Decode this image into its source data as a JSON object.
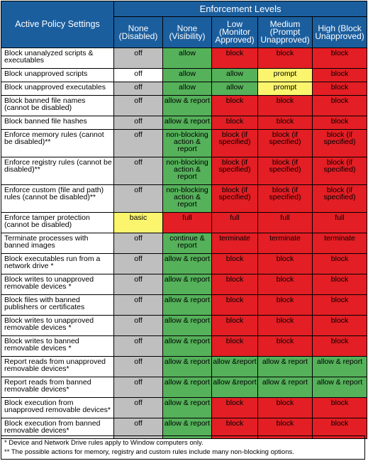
{
  "header": {
    "setting_label": "Active Policy Settings",
    "enforcement_label": "Enforcement Levels",
    "levels": [
      "None (Disabled)",
      "None (Visibility)",
      "Low (Monitor Approved)",
      "Medium (Prompt Unapproved)",
      "High (Block Unapproved)"
    ]
  },
  "colors": {
    "header_bg": "#1b5e9e",
    "gray": "#bfbfbf",
    "green": "#55b15a",
    "red": "#e31e24",
    "yellow": "#fbf56e"
  },
  "rows": [
    {
      "setting": "Block unanalyzed scripts & executables",
      "cells": [
        {
          "t": "off",
          "c": "gray"
        },
        {
          "t": "allow",
          "c": "green"
        },
        {
          "t": "block",
          "c": "red"
        },
        {
          "t": "block",
          "c": "red"
        },
        {
          "t": "block",
          "c": "red"
        }
      ]
    },
    {
      "setting": "Block unapproved scripts",
      "cells": [
        {
          "t": "off",
          "c": "white"
        },
        {
          "t": "allow",
          "c": "green"
        },
        {
          "t": "allow",
          "c": "green"
        },
        {
          "t": "prompt",
          "c": "yellow"
        },
        {
          "t": "block",
          "c": "red"
        }
      ]
    },
    {
      "setting": "Block unapproved executables",
      "cells": [
        {
          "t": "off",
          "c": "gray"
        },
        {
          "t": "allow",
          "c": "green"
        },
        {
          "t": "allow",
          "c": "green"
        },
        {
          "t": "prompt",
          "c": "yellow"
        },
        {
          "t": "block",
          "c": "red"
        }
      ]
    },
    {
      "setting": "Block banned file names (cannot be disabled)",
      "cells": [
        {
          "t": "off",
          "c": "gray"
        },
        {
          "t": "allow & report",
          "c": "green"
        },
        {
          "t": "block",
          "c": "red"
        },
        {
          "t": "block",
          "c": "red"
        },
        {
          "t": "block",
          "c": "red"
        }
      ]
    },
    {
      "setting": "Block banned file hashes",
      "cells": [
        {
          "t": "off",
          "c": "gray"
        },
        {
          "t": "allow & report",
          "c": "green"
        },
        {
          "t": "block",
          "c": "red"
        },
        {
          "t": "block",
          "c": "red"
        },
        {
          "t": "block",
          "c": "red"
        }
      ]
    },
    {
      "setting": "Enforce memory rules (cannot be disabled)**",
      "cells": [
        {
          "t": "off",
          "c": "gray"
        },
        {
          "t": "non-blocking action & report",
          "c": "green"
        },
        {
          "t": "block (if specified)",
          "c": "red"
        },
        {
          "t": "block (if specified)",
          "c": "red"
        },
        {
          "t": "block (if specified)",
          "c": "red"
        }
      ]
    },
    {
      "setting": "Enforce registry rules (cannot be disabled)**",
      "cells": [
        {
          "t": "off",
          "c": "gray"
        },
        {
          "t": "non-blocking action & report",
          "c": "green"
        },
        {
          "t": "block (if specified)",
          "c": "red"
        },
        {
          "t": "block (if specified)",
          "c": "red"
        },
        {
          "t": "block (if specified)",
          "c": "red"
        }
      ]
    },
    {
      "setting": "Enforce custom (file and path) rules (cannot be disabled)**",
      "cells": [
        {
          "t": "off",
          "c": "gray"
        },
        {
          "t": "non-blocking action & report",
          "c": "green"
        },
        {
          "t": "block (if specified)",
          "c": "red"
        },
        {
          "t": "block (if specified)",
          "c": "red"
        },
        {
          "t": "block (if specified)",
          "c": "red"
        }
      ]
    },
    {
      "setting": "Enforce tamper protection (cannot be disabled)",
      "cells": [
        {
          "t": "basic",
          "c": "yellow"
        },
        {
          "t": "full",
          "c": "red"
        },
        {
          "t": "full",
          "c": "red"
        },
        {
          "t": "full",
          "c": "red"
        },
        {
          "t": "full",
          "c": "red"
        }
      ]
    },
    {
      "setting": "Terminate processes with banned images",
      "cells": [
        {
          "t": "off",
          "c": "gray"
        },
        {
          "t": "continue & report",
          "c": "green"
        },
        {
          "t": "terminate",
          "c": "red"
        },
        {
          "t": "terminate",
          "c": "red"
        },
        {
          "t": "terminate",
          "c": "red"
        }
      ]
    },
    {
      "setting": "Block executables run from a network drive *",
      "cells": [
        {
          "t": "off",
          "c": "gray"
        },
        {
          "t": "allow & report",
          "c": "green"
        },
        {
          "t": "block",
          "c": "red"
        },
        {
          "t": "block",
          "c": "red"
        },
        {
          "t": "block",
          "c": "red"
        }
      ]
    },
    {
      "setting": "Block writes to unapproved removable devices *",
      "cells": [
        {
          "t": "off",
          "c": "gray"
        },
        {
          "t": "allow & report",
          "c": "green"
        },
        {
          "t": "block",
          "c": "red"
        },
        {
          "t": "block",
          "c": "red"
        },
        {
          "t": "block",
          "c": "red"
        }
      ]
    },
    {
      "setting": "Block files with banned publishers or certificates",
      "cells": [
        {
          "t": "off",
          "c": "gray"
        },
        {
          "t": "allow & report",
          "c": "green"
        },
        {
          "t": "block",
          "c": "red"
        },
        {
          "t": "block",
          "c": "red"
        },
        {
          "t": "block",
          "c": "red"
        }
      ]
    },
    {
      "setting": "Block writes to unapproved removable devices *",
      "cells": [
        {
          "t": "off",
          "c": "gray"
        },
        {
          "t": "allow & report",
          "c": "green"
        },
        {
          "t": "block",
          "c": "red"
        },
        {
          "t": "block",
          "c": "red"
        },
        {
          "t": "block",
          "c": "red"
        }
      ]
    },
    {
      "setting": "Block writes to banned removable devices *",
      "cells": [
        {
          "t": "off",
          "c": "gray"
        },
        {
          "t": "allow & report",
          "c": "green"
        },
        {
          "t": "block",
          "c": "red"
        },
        {
          "t": "block",
          "c": "red"
        },
        {
          "t": "block",
          "c": "red"
        }
      ]
    },
    {
      "setting": "Report reads from unapproved removable devices*",
      "cells": [
        {
          "t": "off",
          "c": "gray"
        },
        {
          "t": "allow & report",
          "c": "green"
        },
        {
          "t": "allow &report",
          "c": "green"
        },
        {
          "t": "allow & report",
          "c": "green"
        },
        {
          "t": "allow & report",
          "c": "green"
        }
      ]
    },
    {
      "setting": "Report reads from banned removable devices*",
      "cells": [
        {
          "t": "off",
          "c": "gray"
        },
        {
          "t": "allow & report",
          "c": "green"
        },
        {
          "t": "allow &report",
          "c": "green"
        },
        {
          "t": "allow & report",
          "c": "green"
        },
        {
          "t": "allow & report",
          "c": "green"
        }
      ]
    },
    {
      "setting": "Block execution from unapproved removable devices*",
      "cells": [
        {
          "t": "off",
          "c": "gray"
        },
        {
          "t": "allow & report",
          "c": "green"
        },
        {
          "t": "block",
          "c": "red"
        },
        {
          "t": "block",
          "c": "red"
        },
        {
          "t": "block",
          "c": "red"
        }
      ]
    },
    {
      "setting": "Block execution from banned removable devices*",
      "cells": [
        {
          "t": "off",
          "c": "gray"
        },
        {
          "t": "allow & report",
          "c": "green"
        },
        {
          "t": "block",
          "c": "red"
        },
        {
          "t": "block",
          "c": "red"
        },
        {
          "t": "block",
          "c": "red"
        }
      ]
    }
  ],
  "notes": [
    "*  Device and Network Drive rules apply to Window computers only.",
    "** The possible actions for memory, registry and custom rules include many non-blocking options."
  ]
}
